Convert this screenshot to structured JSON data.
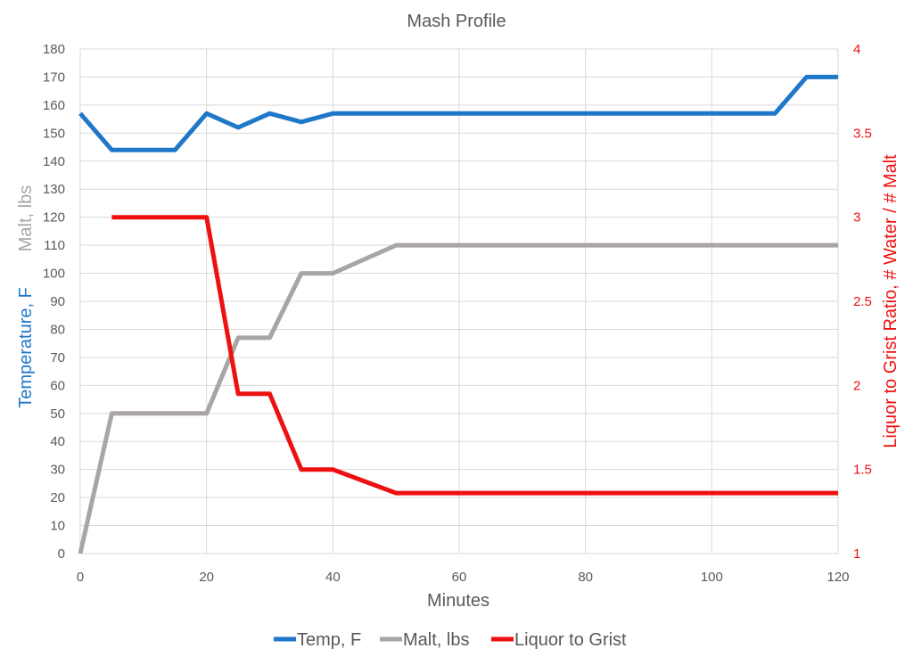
{
  "chart_data": {
    "type": "line",
    "title": "Mash Profile",
    "xlabel": "Minutes",
    "ylabel_left_primary": "Temperature, F",
    "ylabel_left_secondary": "Malt, lbs",
    "ylabel_right": "Liquor to Grist Ratio, # Water  / # Malt",
    "xlim": [
      0,
      120
    ],
    "ylim_left": [
      0,
      180
    ],
    "ylim_right": [
      1,
      4
    ],
    "x_ticks": [
      0,
      20,
      40,
      60,
      80,
      100,
      120
    ],
    "y_left_ticks": [
      0,
      10,
      20,
      30,
      40,
      50,
      60,
      70,
      80,
      90,
      100,
      110,
      120,
      130,
      140,
      150,
      160,
      170,
      180
    ],
    "y_right_ticks": [
      "1",
      "1.5",
      "2",
      "2.5",
      "3",
      "3.5",
      "4"
    ],
    "grid": true,
    "legend_position": "bottom",
    "series": [
      {
        "name": "Temp, F",
        "axis": "left",
        "color": "#1f77c9",
        "points": [
          [
            0,
            157
          ],
          [
            5,
            144
          ],
          [
            10,
            144
          ],
          [
            15,
            144
          ],
          [
            20,
            157
          ],
          [
            25,
            152
          ],
          [
            30,
            157
          ],
          [
            35,
            154
          ],
          [
            40,
            157
          ],
          [
            50,
            157
          ],
          [
            60,
            157
          ],
          [
            70,
            157
          ],
          [
            80,
            157
          ],
          [
            90,
            157
          ],
          [
            100,
            157
          ],
          [
            110,
            157
          ],
          [
            115,
            170
          ],
          [
            120,
            170
          ]
        ]
      },
      {
        "name": "Malt, lbs",
        "axis": "left",
        "color": "#a9a4a6",
        "points": [
          [
            0,
            0
          ],
          [
            5,
            50
          ],
          [
            10,
            50
          ],
          [
            15,
            50
          ],
          [
            20,
            50
          ],
          [
            25,
            77
          ],
          [
            30,
            77
          ],
          [
            35,
            100
          ],
          [
            40,
            100
          ],
          [
            50,
            110
          ],
          [
            60,
            110
          ],
          [
            70,
            110
          ],
          [
            80,
            110
          ],
          [
            90,
            110
          ],
          [
            100,
            110
          ],
          [
            110,
            110
          ],
          [
            120,
            110
          ]
        ]
      },
      {
        "name": "Liquor to Grist",
        "axis": "right",
        "color": "#ee1111",
        "points": [
          [
            5,
            3.0
          ],
          [
            10,
            3.0
          ],
          [
            15,
            3.0
          ],
          [
            20,
            3.0
          ],
          [
            25,
            1.95
          ],
          [
            30,
            1.95
          ],
          [
            35,
            1.5
          ],
          [
            40,
            1.5
          ],
          [
            50,
            1.36
          ],
          [
            60,
            1.36
          ],
          [
            70,
            1.36
          ],
          [
            80,
            1.36
          ],
          [
            90,
            1.36
          ],
          [
            100,
            1.36
          ],
          [
            110,
            1.36
          ],
          [
            120,
            1.36
          ]
        ]
      }
    ]
  }
}
